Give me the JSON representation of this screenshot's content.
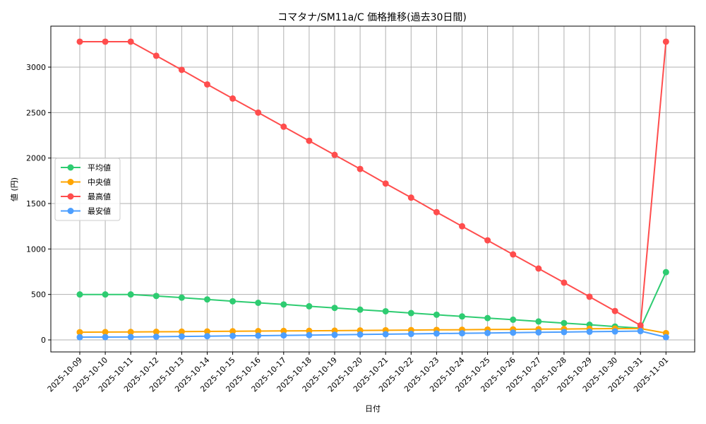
{
  "chart_data": {
    "type": "line",
    "title": "コマタナ/SM11a/C 価格推移(過去30日間)",
    "xlabel": "日付",
    "ylabel": "値 (円)",
    "ylim": [
      -130,
      3420
    ],
    "yticks": [
      0,
      500,
      1000,
      1500,
      2000,
      2500,
      3000
    ],
    "grid": true,
    "legend_position": "center left",
    "categories": [
      "2025-10-09",
      "2025-10-10",
      "2025-10-11",
      "2025-10-12",
      "2025-10-13",
      "2025-10-14",
      "2025-10-15",
      "2025-10-16",
      "2025-10-17",
      "2025-10-18",
      "2025-10-19",
      "2025-10-20",
      "2025-10-21",
      "2025-10-22",
      "2025-10-23",
      "2025-10-24",
      "2025-10-25",
      "2025-10-26",
      "2025-10-27",
      "2025-10-28",
      "2025-10-29",
      "2025-10-30",
      "2025-10-31",
      "2025-11-01"
    ],
    "series": [
      {
        "name": "平均値",
        "color": "#2ecc71",
        "values": [
          500,
          500,
          500,
          483,
          465,
          445,
          425,
          408,
          390,
          370,
          352,
          333,
          315,
          295,
          277,
          258,
          240,
          222,
          203,
          185,
          167,
          147,
          130,
          745
        ]
      },
      {
        "name": "中央値",
        "color": "#ffa500",
        "values": [
          85,
          86,
          87,
          89,
          91,
          93,
          95,
          97,
          99,
          100,
          102,
          104,
          106,
          108,
          110,
          112,
          114,
          116,
          118,
          120,
          122,
          124,
          125,
          75
        ]
      },
      {
        "name": "最高値",
        "color": "#ff4d4d",
        "values": [
          3280,
          3280,
          3280,
          3125,
          2970,
          2810,
          2655,
          2500,
          2345,
          2190,
          2035,
          1880,
          1720,
          1565,
          1405,
          1250,
          1095,
          940,
          785,
          630,
          475,
          318,
          160,
          3280
        ]
      },
      {
        "name": "最安値",
        "color": "#4d9fff",
        "values": [
          30,
          31,
          32,
          35,
          38,
          41,
          44,
          47,
          50,
          53,
          56,
          60,
          63,
          66,
          70,
          73,
          76,
          80,
          83,
          86,
          90,
          93,
          97,
          30
        ]
      }
    ]
  }
}
